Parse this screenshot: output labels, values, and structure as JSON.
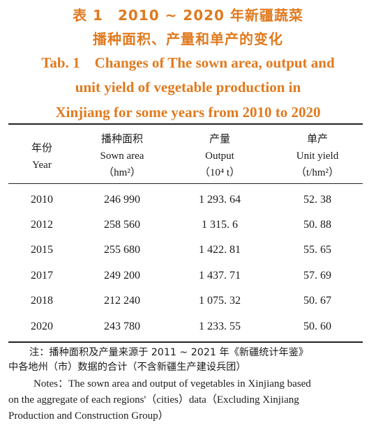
{
  "title": {
    "cn_line1": "表 1　2010 ~ 2020 年新疆蔬菜",
    "cn_line2": "播种面积、产量和单产的变化",
    "en_line1": "Tab. 1　Changes of The sown area, output and",
    "en_line2": "unit yield of vegetable production in",
    "en_line3": "Xinjiang for some years from 2010 to 2020"
  },
  "table": {
    "headers": [
      {
        "cn": "年份",
        "en": "Year",
        "unit": ""
      },
      {
        "cn": "播种面积",
        "en": "Sown area",
        "unit": "（hm²）"
      },
      {
        "cn": "产量",
        "en": "Output",
        "unit": "（10⁴ t）"
      },
      {
        "cn": "单产",
        "en": "Unit yield",
        "unit": "（t/hm²）"
      }
    ],
    "rows": [
      [
        "2010",
        "246 990",
        "1 293. 64",
        "52. 38"
      ],
      [
        "2012",
        "258 560",
        "1 315. 6",
        "50. 88"
      ],
      [
        "2015",
        "255 680",
        "1 422. 81",
        "55. 65"
      ],
      [
        "2017",
        "249 200",
        "1 437. 71",
        "57. 69"
      ],
      [
        "2018",
        "212 240",
        "1 075. 32",
        "50. 67"
      ],
      [
        "2020",
        "243 780",
        "1 233. 55",
        "50. 60"
      ]
    ]
  },
  "notes": {
    "cn_line1": "注：播种面积及产量来源于 2011 ~ 2021 年《新疆统计年鉴》",
    "cn_line2": "中各地州（市）数据的合计（不含新疆生产建设兵团）",
    "en_line1": "Notes：The sown area and output of vegetables in Xinjiang based",
    "en_line2": "on the aggregate of each regions'（cities）data（Excluding Xinjiang",
    "en_line3": "Production and Construction Group）"
  },
  "colors": {
    "title": "#e07a1f",
    "text": "#1a1a1a",
    "rule": "#222222"
  }
}
